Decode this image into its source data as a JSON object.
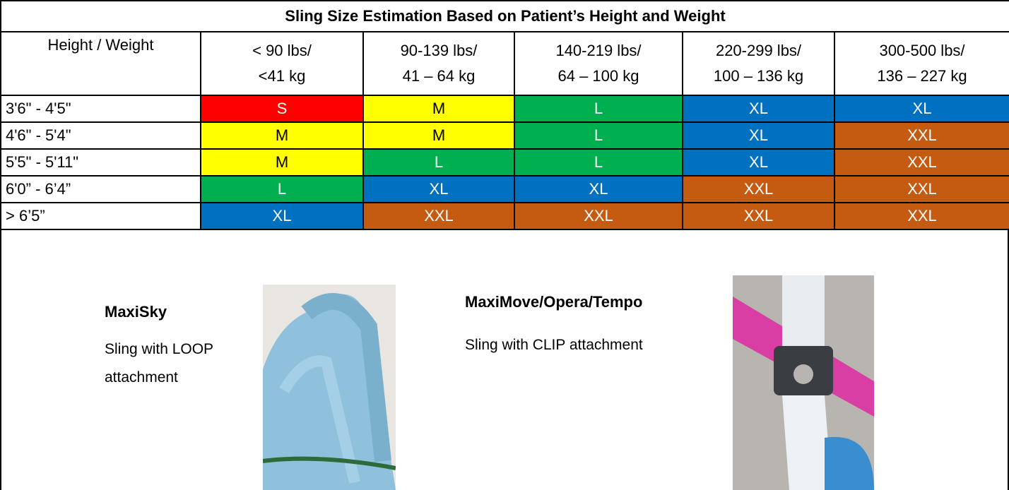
{
  "title": "Sling Size Estimation Based on Patient’s Height and Weight",
  "header": [
    [
      "Height / Weight"
    ],
    [
      "< 90 lbs/",
      "<41 kg"
    ],
    [
      "90-139 lbs/",
      "41 – 64 kg"
    ],
    [
      "140-219 lbs/",
      "64 – 100 kg"
    ],
    [
      "220-299 lbs/",
      "100 – 136 kg"
    ],
    [
      "300-500 lbs/",
      "136 – 227 kg"
    ]
  ],
  "rows": [
    {
      "height": "3'6\" - 4'5\"",
      "sizes": [
        "S",
        "M",
        "L",
        "XL",
        "XL"
      ]
    },
    {
      "height": "4'6\" - 5'4\"",
      "sizes": [
        "M",
        "M",
        "L",
        "XL",
        "XXL"
      ]
    },
    {
      "height": "5'5\" - 5'11\"",
      "sizes": [
        "M",
        "L",
        "L",
        "XL",
        "XXL"
      ]
    },
    {
      "height": "6'0” - 6’4”",
      "sizes": [
        "L",
        "XL",
        "XL",
        "XXL",
        "XXL"
      ]
    },
    {
      "height": ">  6’5”",
      "sizes": [
        "XL",
        "XXL",
        "XXL",
        "XXL",
        "XXL"
      ]
    }
  ],
  "size_colors": {
    "S": "#ff0000",
    "M": "#ffff00",
    "L": "#00b050",
    "XL": "#0070c0",
    "XXL": "#c55a11"
  },
  "size_text_colors": {
    "S": "#ffffff",
    "M": "#000000",
    "L": "#ffffff",
    "XL": "#ffffff",
    "XXL": "#ffffff"
  },
  "products": [
    {
      "name": "MaxiSky",
      "description": "Sling with LOOP attachment"
    },
    {
      "name": "MaxiMove/Opera/Tempo",
      "description": "Sling with CLIP attachment"
    }
  ]
}
